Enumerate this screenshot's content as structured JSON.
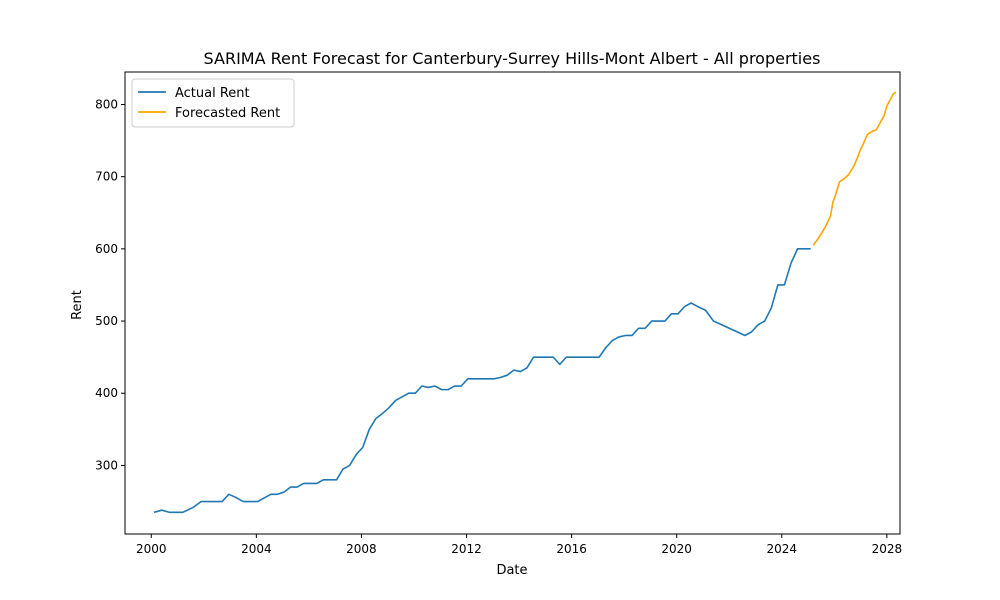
{
  "chart_data": {
    "type": "line",
    "title": "SARIMA Rent Forecast for Canterbury-Surrey Hills-Mont Albert - All properties",
    "xlabel": "Date",
    "ylabel": "Rent",
    "xlim": [
      1999.0,
      2028.5
    ],
    "ylim": [
      205,
      845
    ],
    "x_ticks": [
      2000,
      2004,
      2008,
      2012,
      2016,
      2020,
      2024,
      2028
    ],
    "x_tick_labels": [
      "2000",
      "2004",
      "2008",
      "2012",
      "2016",
      "2020",
      "2024",
      "2028"
    ],
    "y_ticks": [
      300,
      400,
      500,
      600,
      700,
      800
    ],
    "y_tick_labels": [
      "300",
      "400",
      "500",
      "600",
      "700",
      "800"
    ],
    "grid": false,
    "legend_position": "top-left",
    "series": [
      {
        "name": "Actual Rent",
        "color": "#1f77b4",
        "points": [
          [
            2000.1,
            235
          ],
          [
            2000.4,
            238
          ],
          [
            2000.7,
            235
          ],
          [
            2001.2,
            235
          ],
          [
            2001.6,
            242
          ],
          [
            2001.9,
            250
          ],
          [
            2002.3,
            250
          ],
          [
            2002.7,
            250
          ],
          [
            2002.95,
            260
          ],
          [
            2003.2,
            256
          ],
          [
            2003.5,
            250
          ],
          [
            2003.8,
            250
          ],
          [
            2004.05,
            250
          ],
          [
            2004.3,
            255
          ],
          [
            2004.55,
            260
          ],
          [
            2004.8,
            260
          ],
          [
            2005.05,
            263
          ],
          [
            2005.3,
            270
          ],
          [
            2005.55,
            270
          ],
          [
            2005.8,
            275
          ],
          [
            2006.05,
            275
          ],
          [
            2006.3,
            275
          ],
          [
            2006.55,
            280
          ],
          [
            2006.8,
            280
          ],
          [
            2007.05,
            280
          ],
          [
            2007.3,
            295
          ],
          [
            2007.55,
            300
          ],
          [
            2007.8,
            315
          ],
          [
            2008.05,
            325
          ],
          [
            2008.3,
            350
          ],
          [
            2008.55,
            365
          ],
          [
            2008.8,
            372
          ],
          [
            2009.05,
            380
          ],
          [
            2009.3,
            390
          ],
          [
            2009.55,
            395
          ],
          [
            2009.8,
            400
          ],
          [
            2010.05,
            400
          ],
          [
            2010.3,
            410
          ],
          [
            2010.55,
            408
          ],
          [
            2010.8,
            410
          ],
          [
            2011.05,
            405
          ],
          [
            2011.3,
            405
          ],
          [
            2011.55,
            410
          ],
          [
            2011.8,
            410
          ],
          [
            2012.05,
            420
          ],
          [
            2012.3,
            420
          ],
          [
            2012.55,
            420
          ],
          [
            2012.8,
            420
          ],
          [
            2013.05,
            420
          ],
          [
            2013.3,
            422
          ],
          [
            2013.55,
            425
          ],
          [
            2013.8,
            432
          ],
          [
            2014.05,
            430
          ],
          [
            2014.3,
            435
          ],
          [
            2014.55,
            450
          ],
          [
            2014.8,
            450
          ],
          [
            2015.05,
            450
          ],
          [
            2015.3,
            450
          ],
          [
            2015.55,
            440
          ],
          [
            2015.8,
            450
          ],
          [
            2016.05,
            450
          ],
          [
            2016.3,
            450
          ],
          [
            2016.55,
            450
          ],
          [
            2016.8,
            450
          ],
          [
            2017.05,
            450
          ],
          [
            2017.3,
            463
          ],
          [
            2017.55,
            473
          ],
          [
            2017.8,
            478
          ],
          [
            2018.05,
            480
          ],
          [
            2018.3,
            480
          ],
          [
            2018.55,
            490
          ],
          [
            2018.8,
            490
          ],
          [
            2019.05,
            500
          ],
          [
            2019.3,
            500
          ],
          [
            2019.55,
            500
          ],
          [
            2019.8,
            510
          ],
          [
            2020.05,
            510
          ],
          [
            2020.3,
            520
          ],
          [
            2020.55,
            525
          ],
          [
            2020.8,
            520
          ],
          [
            2021.1,
            515
          ],
          [
            2021.4,
            500
          ],
          [
            2021.7,
            495
          ],
          [
            2022.0,
            490
          ],
          [
            2022.3,
            485
          ],
          [
            2022.6,
            480
          ],
          [
            2022.85,
            485
          ],
          [
            2023.1,
            495
          ],
          [
            2023.35,
            500
          ],
          [
            2023.6,
            518
          ],
          [
            2023.85,
            550
          ],
          [
            2024.1,
            550
          ],
          [
            2024.35,
            580
          ],
          [
            2024.6,
            600
          ],
          [
            2024.85,
            600
          ],
          [
            2025.1,
            600
          ]
        ]
      },
      {
        "name": "Forecasted Rent",
        "color": "#ffa500",
        "points": [
          [
            2025.2,
            605
          ],
          [
            2025.4,
            615
          ],
          [
            2025.65,
            630
          ],
          [
            2025.85,
            645
          ],
          [
            2025.95,
            665
          ],
          [
            2026.05,
            675
          ],
          [
            2026.2,
            693
          ],
          [
            2026.4,
            698
          ],
          [
            2026.55,
            703
          ],
          [
            2026.75,
            715
          ],
          [
            2026.9,
            728
          ],
          [
            2027.0,
            738
          ],
          [
            2027.1,
            745
          ],
          [
            2027.25,
            758
          ],
          [
            2027.4,
            762
          ],
          [
            2027.6,
            765
          ],
          [
            2027.75,
            775
          ],
          [
            2027.9,
            785
          ],
          [
            2028.0,
            798
          ],
          [
            2028.15,
            808
          ],
          [
            2028.25,
            815
          ],
          [
            2028.35,
            817
          ]
        ]
      }
    ]
  }
}
